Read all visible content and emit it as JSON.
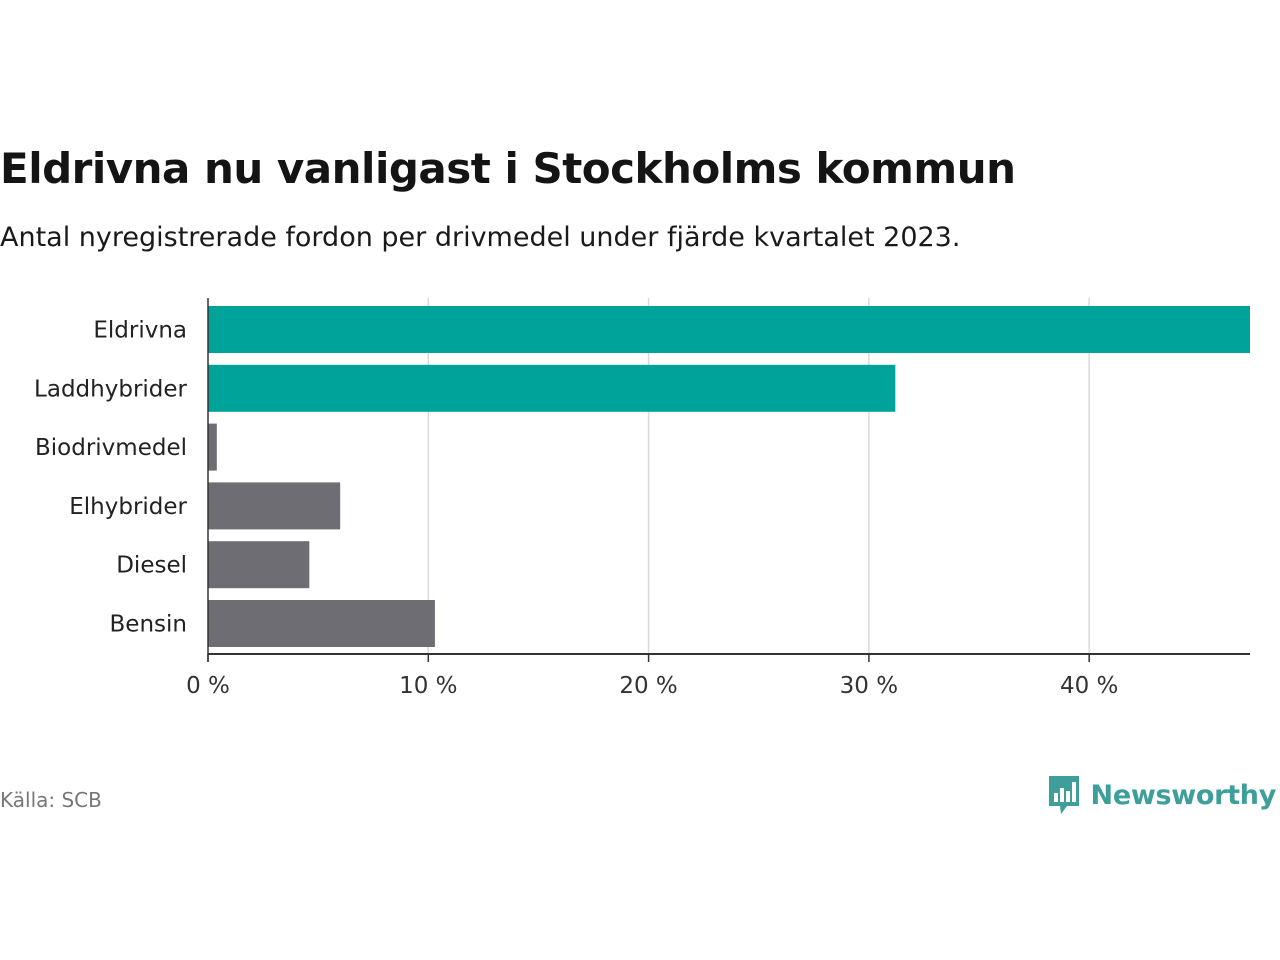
{
  "title": "Eldrivna nu vanligast i Stockholms kommun",
  "subtitle": "Antal nyregistrerade fordon per drivmedel under fjärde kvartalet 2023.",
  "source": "Källa: SCB",
  "brand": {
    "name": "Newsworthy",
    "icon": "newsworthy-logo-icon",
    "color": "#3d9e9a"
  },
  "colors": {
    "highlight": "#00a39a",
    "muted": "#6e6d73",
    "grid": "#d9d9d9",
    "axis": "#333333"
  },
  "chart_data": {
    "type": "bar",
    "orientation": "horizontal",
    "categories": [
      "Eldrivna",
      "Laddhybrider",
      "Biodrivmedel",
      "Elhybrider",
      "Diesel",
      "Bensin"
    ],
    "values": [
      47.3,
      31.2,
      0.4,
      6.0,
      4.6,
      10.3
    ],
    "highlighted": [
      true,
      true,
      false,
      false,
      false,
      false
    ],
    "xlim": [
      0,
      47.3
    ],
    "xticks": [
      0,
      10,
      20,
      30,
      40
    ],
    "xtick_labels": [
      "0 %",
      "10 %",
      "20 %",
      "30 %",
      "40 %"
    ],
    "grid": true
  }
}
